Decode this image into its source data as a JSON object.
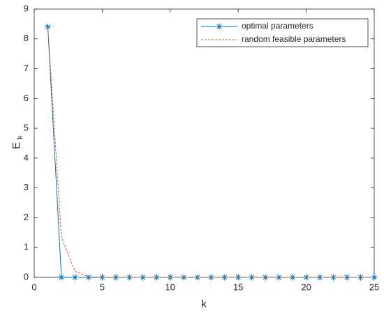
{
  "chart_data": {
    "type": "line",
    "xlabel": "k",
    "ylabel": "E",
    "ylabel_subscript": "k",
    "x": [
      1,
      2,
      3,
      4,
      5,
      6,
      7,
      8,
      9,
      10,
      11,
      12,
      13,
      14,
      15,
      16,
      17,
      18,
      19,
      20,
      21,
      22,
      23,
      24,
      25
    ],
    "series": [
      {
        "name": "optimal parameters",
        "color": "#0072BD",
        "dash": "solid",
        "marker": "*",
        "values": [
          8.4,
          0,
          0,
          0,
          0,
          0,
          0,
          0,
          0,
          0,
          0,
          0,
          0,
          0,
          0,
          0,
          0,
          0,
          0,
          0,
          0,
          0,
          0,
          0,
          0
        ]
      },
      {
        "name": "random feasible parameters",
        "color": "#D95319",
        "dash": "dashed",
        "marker": "none",
        "values": [
          8.4,
          1.35,
          0.2,
          0.02,
          0,
          0,
          0,
          0,
          0,
          0,
          0,
          0,
          0,
          0,
          0,
          0,
          0,
          0,
          0,
          0,
          0,
          0,
          0,
          0,
          0
        ]
      }
    ],
    "xlim": [
      0,
      25
    ],
    "xticks": [
      0,
      5,
      10,
      15,
      20,
      25
    ],
    "ylim": [
      0,
      9
    ],
    "yticks": [
      0,
      1,
      2,
      3,
      4,
      5,
      6,
      7,
      8,
      9
    ],
    "grid": false,
    "legend": "top-right"
  }
}
